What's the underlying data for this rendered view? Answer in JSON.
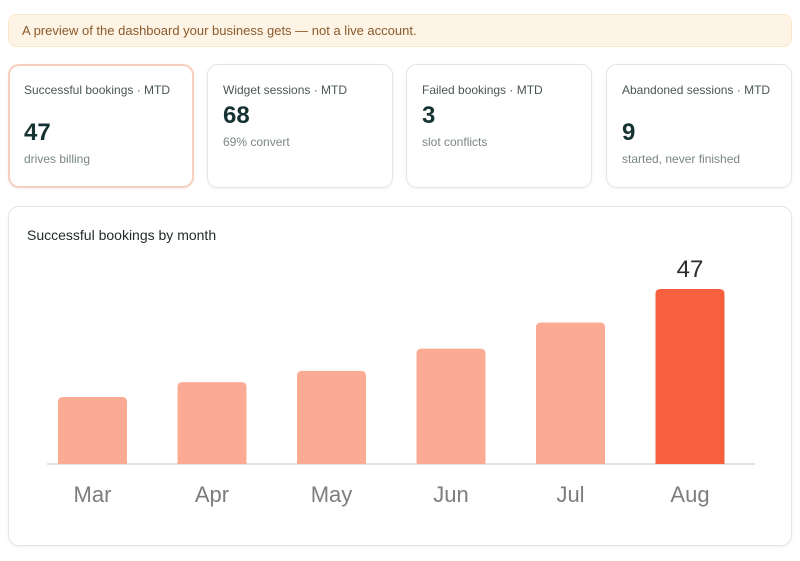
{
  "banner": {
    "text": "A preview of the dashboard your business gets — not a live account."
  },
  "kpis": [
    {
      "label": "Successful bookings · MTD",
      "value": "47",
      "sub": "drives billing",
      "highlight": true
    },
    {
      "label": "Widget sessions · MTD",
      "value": "68",
      "sub": "69% convert",
      "highlight": false
    },
    {
      "label": "Failed bookings · MTD",
      "value": "3",
      "sub": "slot conflicts",
      "highlight": false
    },
    {
      "label": "Abandoned sessions · MTD",
      "value": "9",
      "sub": "started, never finished",
      "highlight": false
    }
  ],
  "panel": {
    "title": "Successful bookings by month"
  },
  "colors": {
    "bar": "#fbab93",
    "bar_highlight": "#f6603e",
    "axis": "#e2e2e2",
    "tick_text": "#7d7d7d"
  },
  "chart_data": {
    "type": "bar",
    "title": "Successful bookings by month",
    "categories": [
      "Mar",
      "Apr",
      "May",
      "Jun",
      "Jul",
      "Aug"
    ],
    "values": [
      18,
      22,
      25,
      31,
      38,
      47
    ],
    "highlight_index": 5,
    "data_labels": {
      "Aug": "47"
    },
    "ylim": [
      0,
      47
    ],
    "grid": false,
    "legend": "none"
  }
}
